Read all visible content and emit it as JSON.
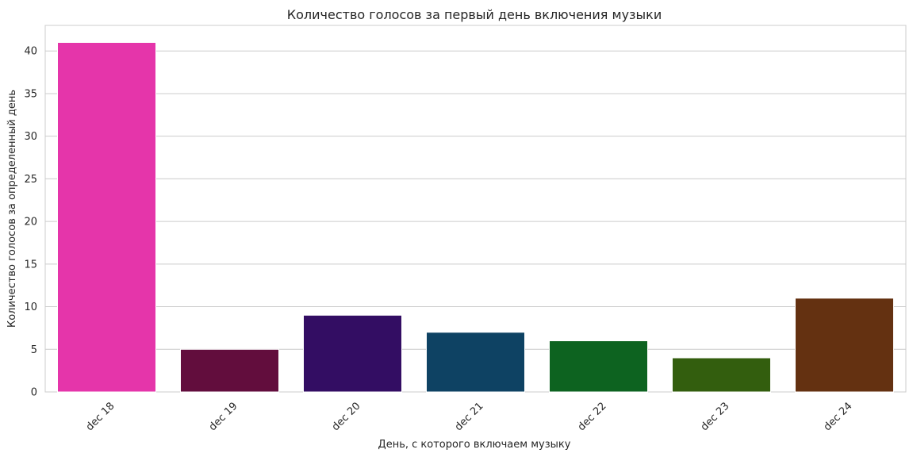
{
  "chart_data": {
    "type": "bar",
    "title": "Количество голосов за первый день включения музыки",
    "xlabel": "День, с которого включаем музыку",
    "ylabel": "Количество голосов за определенный день",
    "categories": [
      "dec 18",
      "dec 19",
      "dec 20",
      "dec 21",
      "dec 22",
      "dec 23",
      "dec 24"
    ],
    "values": [
      41,
      5,
      9,
      7,
      6,
      4,
      11
    ],
    "colors": [
      "#e535aa",
      "#620d3d",
      "#330d63",
      "#0e4263",
      "#0d6320",
      "#335e0e",
      "#643111"
    ],
    "ylim": [
      0,
      43
    ],
    "yticks": [
      0,
      5,
      10,
      15,
      20,
      25,
      30,
      35,
      40
    ],
    "grid": true,
    "x_tick_rotation": 45
  }
}
